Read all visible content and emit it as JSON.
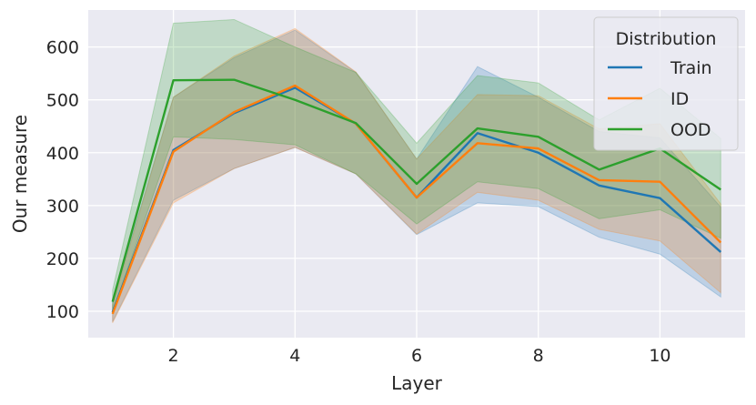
{
  "chart_data": {
    "type": "line",
    "xlabel": "Layer",
    "ylabel": "Our measure",
    "xlim": [
      0.6,
      11.4
    ],
    "ylim": [
      50,
      670
    ],
    "xticks": [
      2,
      4,
      6,
      8,
      10
    ],
    "yticks": [
      100,
      200,
      300,
      400,
      500,
      600
    ],
    "grid": true,
    "legend": {
      "title": "Distribution",
      "position": "top-right"
    },
    "x": [
      1,
      2,
      3,
      4,
      5,
      6,
      7,
      8,
      9,
      10,
      11
    ],
    "series": [
      {
        "name": "Train",
        "color": "#1f77b4",
        "values": [
          98,
          405,
          475,
          523,
          455,
          315,
          437,
          400,
          338,
          314,
          212
        ],
        "lower": [
          80,
          310,
          370,
          410,
          360,
          245,
          305,
          298,
          240,
          208,
          127
        ],
        "upper": [
          118,
          505,
          580,
          632,
          552,
          388,
          563,
          505,
          440,
          428,
          297
        ]
      },
      {
        "name": "ID",
        "color": "#ff7f0e",
        "values": [
          95,
          402,
          477,
          527,
          455,
          315,
          418,
          408,
          348,
          345,
          230
        ],
        "lower": [
          78,
          305,
          370,
          410,
          360,
          246,
          325,
          310,
          255,
          233,
          135
        ],
        "upper": [
          112,
          505,
          583,
          635,
          553,
          388,
          510,
          508,
          445,
          455,
          303
        ]
      },
      {
        "name": "OOD",
        "color": "#2ca02c",
        "values": [
          118,
          537,
          538,
          500,
          456,
          341,
          446,
          430,
          368,
          408,
          330
        ],
        "lower": [
          98,
          430,
          425,
          415,
          360,
          265,
          345,
          332,
          275,
          292,
          238
        ],
        "upper": [
          140,
          645,
          652,
          600,
          552,
          418,
          546,
          532,
          462,
          522,
          427
        ]
      }
    ]
  }
}
